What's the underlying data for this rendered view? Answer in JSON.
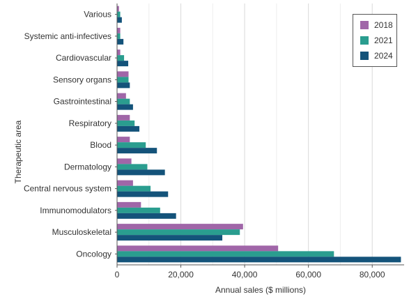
{
  "chart_data": {
    "type": "bar",
    "orientation": "horizontal",
    "title": "",
    "xlabel": "Annual sales ($ millions)",
    "ylabel": "Therapeutic area",
    "xlim": [
      0,
      90000
    ],
    "xticks": [
      0,
      20000,
      40000,
      60000,
      80000
    ],
    "xtick_labels": [
      "0",
      "20,000",
      "40,000",
      "60,000",
      "80,000"
    ],
    "grid": "vertical",
    "legend_position": "top-right",
    "categories": [
      "Various",
      "Systemic anti-infectives",
      "Cardiovascular",
      "Sensory organs",
      "Gastrointestinal",
      "Respiratory",
      "Blood",
      "Dermatology",
      "Central nervous system",
      "Immunomodulators",
      "Musculoskeletal",
      "Oncology"
    ],
    "series": [
      {
        "name": "2018",
        "color": "#a066a8",
        "values": [
          600,
          1000,
          1000,
          3600,
          2800,
          4000,
          4000,
          4500,
          5000,
          7500,
          39500,
          50500
        ]
      },
      {
        "name": "2021",
        "color": "#2a9d8f",
        "values": [
          1000,
          1000,
          2200,
          3600,
          4000,
          5500,
          9000,
          9500,
          10500,
          13500,
          38500,
          68000
        ]
      },
      {
        "name": "2024",
        "color": "#14537a",
        "values": [
          1500,
          2000,
          3500,
          4000,
          5000,
          7000,
          12500,
          15000,
          16000,
          18500,
          33000,
          89000
        ]
      }
    ]
  }
}
